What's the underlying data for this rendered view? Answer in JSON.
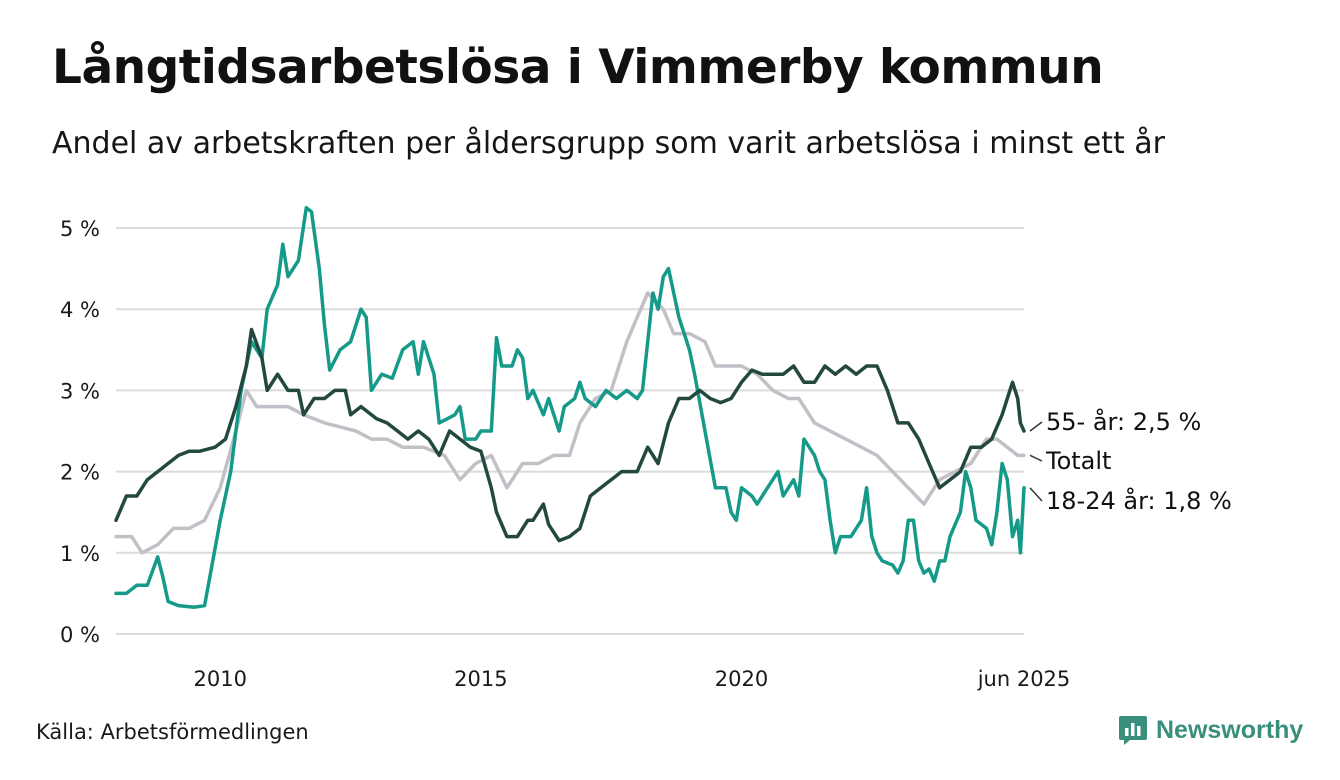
{
  "title": "Långtidsarbetslösa i Vimmerby kommun",
  "subtitle": "Andel av arbetskraften per åldersgrupp som varit arbetslösa i minst ett år",
  "source": "Källa: Arbetsförmedlingen",
  "brand": {
    "name": "Newsworthy",
    "icon": "bar-chart-logo-icon",
    "color": "#3a8f7c"
  },
  "chart_data": {
    "type": "line",
    "ylim": [
      0,
      5.2
    ],
    "xlim": [
      2008.0,
      2025.42
    ],
    "y_ticks": [
      {
        "value": 0,
        "label": "0 %"
      },
      {
        "value": 1,
        "label": "1 %"
      },
      {
        "value": 2,
        "label": "2 %"
      },
      {
        "value": 3,
        "label": "3 %"
      },
      {
        "value": 4,
        "label": "4 %"
      },
      {
        "value": 5,
        "label": "5 %"
      }
    ],
    "x_ticks": [
      {
        "value": 2010,
        "label": "2010"
      },
      {
        "value": 2015,
        "label": "2015"
      },
      {
        "value": 2020,
        "label": "2020"
      },
      {
        "value": 2025.42,
        "label": "jun 2025"
      }
    ],
    "grid": true,
    "series": [
      {
        "name": "Totalt",
        "label": "Totalt",
        "color": "#c2bfc7",
        "points": [
          [
            2008.0,
            1.2
          ],
          [
            2008.3,
            1.2
          ],
          [
            2008.5,
            1.0
          ],
          [
            2008.8,
            1.1
          ],
          [
            2009.1,
            1.3
          ],
          [
            2009.4,
            1.3
          ],
          [
            2009.7,
            1.4
          ],
          [
            2010.0,
            1.8
          ],
          [
            2010.3,
            2.5
          ],
          [
            2010.5,
            3.0
          ],
          [
            2010.7,
            2.8
          ],
          [
            2011.0,
            2.8
          ],
          [
            2011.3,
            2.8
          ],
          [
            2011.6,
            2.7
          ],
          [
            2012.0,
            2.6
          ],
          [
            2012.3,
            2.55
          ],
          [
            2012.6,
            2.5
          ],
          [
            2012.9,
            2.4
          ],
          [
            2013.2,
            2.4
          ],
          [
            2013.5,
            2.3
          ],
          [
            2013.9,
            2.3
          ],
          [
            2014.3,
            2.2
          ],
          [
            2014.6,
            1.9
          ],
          [
            2014.9,
            2.1
          ],
          [
            2015.2,
            2.2
          ],
          [
            2015.5,
            1.8
          ],
          [
            2015.8,
            2.1
          ],
          [
            2016.1,
            2.1
          ],
          [
            2016.4,
            2.2
          ],
          [
            2016.7,
            2.2
          ],
          [
            2016.9,
            2.6
          ],
          [
            2017.2,
            2.9
          ],
          [
            2017.5,
            3.0
          ],
          [
            2017.8,
            3.6
          ],
          [
            2018.0,
            3.9
          ],
          [
            2018.2,
            4.2
          ],
          [
            2018.5,
            4.0
          ],
          [
            2018.7,
            3.7
          ],
          [
            2019.0,
            3.7
          ],
          [
            2019.3,
            3.6
          ],
          [
            2019.5,
            3.3
          ],
          [
            2019.8,
            3.3
          ],
          [
            2020.0,
            3.3
          ],
          [
            2020.3,
            3.2
          ],
          [
            2020.6,
            3.0
          ],
          [
            2020.9,
            2.9
          ],
          [
            2021.1,
            2.9
          ],
          [
            2021.4,
            2.6
          ],
          [
            2021.7,
            2.5
          ],
          [
            2022.0,
            2.4
          ],
          [
            2022.3,
            2.3
          ],
          [
            2022.6,
            2.2
          ],
          [
            2022.9,
            2.0
          ],
          [
            2023.2,
            1.8
          ],
          [
            2023.5,
            1.6
          ],
          [
            2023.8,
            1.9
          ],
          [
            2024.1,
            2.0
          ],
          [
            2024.4,
            2.1
          ],
          [
            2024.7,
            2.4
          ],
          [
            2024.9,
            2.4
          ],
          [
            2025.1,
            2.3
          ],
          [
            2025.3,
            2.2
          ],
          [
            2025.42,
            2.2
          ]
        ]
      },
      {
        "name": "18-24 år",
        "label": "18-24 år: 1,8 %",
        "color": "#159a8a",
        "points": [
          [
            2008.0,
            0.5
          ],
          [
            2008.2,
            0.5
          ],
          [
            2008.4,
            0.6
          ],
          [
            2008.6,
            0.6
          ],
          [
            2008.8,
            0.95
          ],
          [
            2008.9,
            0.7
          ],
          [
            2009.0,
            0.4
          ],
          [
            2009.2,
            0.35
          ],
          [
            2009.5,
            0.33
          ],
          [
            2009.7,
            0.35
          ],
          [
            2009.8,
            0.7
          ],
          [
            2010.0,
            1.4
          ],
          [
            2010.2,
            2.0
          ],
          [
            2010.4,
            3.0
          ],
          [
            2010.6,
            3.6
          ],
          [
            2010.8,
            3.4
          ],
          [
            2010.9,
            4.0
          ],
          [
            2011.1,
            4.3
          ],
          [
            2011.2,
            4.8
          ],
          [
            2011.3,
            4.4
          ],
          [
            2011.5,
            4.6
          ],
          [
            2011.65,
            5.25
          ],
          [
            2011.75,
            5.2
          ],
          [
            2011.9,
            4.5
          ],
          [
            2012.0,
            3.8
          ],
          [
            2012.1,
            3.25
          ],
          [
            2012.3,
            3.5
          ],
          [
            2012.5,
            3.6
          ],
          [
            2012.7,
            4.0
          ],
          [
            2012.8,
            3.9
          ],
          [
            2012.9,
            3.0
          ],
          [
            2013.1,
            3.2
          ],
          [
            2013.3,
            3.15
          ],
          [
            2013.5,
            3.5
          ],
          [
            2013.7,
            3.6
          ],
          [
            2013.8,
            3.2
          ],
          [
            2013.9,
            3.6
          ],
          [
            2014.1,
            3.2
          ],
          [
            2014.2,
            2.6
          ],
          [
            2014.5,
            2.7
          ],
          [
            2014.6,
            2.8
          ],
          [
            2014.7,
            2.4
          ],
          [
            2014.9,
            2.4
          ],
          [
            2015.0,
            2.5
          ],
          [
            2015.2,
            2.5
          ],
          [
            2015.3,
            3.65
          ],
          [
            2015.4,
            3.3
          ],
          [
            2015.6,
            3.3
          ],
          [
            2015.7,
            3.5
          ],
          [
            2015.8,
            3.4
          ],
          [
            2015.9,
            2.9
          ],
          [
            2016.0,
            3.0
          ],
          [
            2016.2,
            2.7
          ],
          [
            2016.3,
            2.9
          ],
          [
            2016.5,
            2.5
          ],
          [
            2016.6,
            2.8
          ],
          [
            2016.8,
            2.9
          ],
          [
            2016.9,
            3.1
          ],
          [
            2017.0,
            2.9
          ],
          [
            2017.2,
            2.8
          ],
          [
            2017.4,
            3.0
          ],
          [
            2017.6,
            2.9
          ],
          [
            2017.8,
            3.0
          ],
          [
            2018.0,
            2.9
          ],
          [
            2018.1,
            3.0
          ],
          [
            2018.3,
            4.2
          ],
          [
            2018.4,
            4.0
          ],
          [
            2018.5,
            4.4
          ],
          [
            2018.6,
            4.5
          ],
          [
            2018.8,
            3.9
          ],
          [
            2018.9,
            3.7
          ],
          [
            2019.0,
            3.5
          ],
          [
            2019.1,
            3.2
          ],
          [
            2019.3,
            2.5
          ],
          [
            2019.5,
            1.8
          ],
          [
            2019.7,
            1.8
          ],
          [
            2019.8,
            1.5
          ],
          [
            2019.9,
            1.4
          ],
          [
            2020.0,
            1.8
          ],
          [
            2020.2,
            1.7
          ],
          [
            2020.3,
            1.6
          ],
          [
            2020.5,
            1.8
          ],
          [
            2020.7,
            2.0
          ],
          [
            2020.8,
            1.7
          ],
          [
            2020.9,
            1.8
          ],
          [
            2021.0,
            1.9
          ],
          [
            2021.1,
            1.7
          ],
          [
            2021.2,
            2.4
          ],
          [
            2021.4,
            2.2
          ],
          [
            2021.5,
            2.0
          ],
          [
            2021.6,
            1.9
          ],
          [
            2021.7,
            1.4
          ],
          [
            2021.8,
            1.0
          ],
          [
            2021.9,
            1.2
          ],
          [
            2022.1,
            1.2
          ],
          [
            2022.3,
            1.4
          ],
          [
            2022.4,
            1.8
          ],
          [
            2022.5,
            1.2
          ],
          [
            2022.6,
            1.0
          ],
          [
            2022.7,
            0.9
          ],
          [
            2022.9,
            0.85
          ],
          [
            2023.0,
            0.75
          ],
          [
            2023.1,
            0.9
          ],
          [
            2023.2,
            1.4
          ],
          [
            2023.3,
            1.4
          ],
          [
            2023.4,
            0.9
          ],
          [
            2023.5,
            0.75
          ],
          [
            2023.6,
            0.8
          ],
          [
            2023.7,
            0.65
          ],
          [
            2023.8,
            0.9
          ],
          [
            2023.9,
            0.9
          ],
          [
            2024.0,
            1.2
          ],
          [
            2024.2,
            1.5
          ],
          [
            2024.3,
            2.0
          ],
          [
            2024.4,
            1.8
          ],
          [
            2024.5,
            1.4
          ],
          [
            2024.7,
            1.3
          ],
          [
            2024.8,
            1.1
          ],
          [
            2024.9,
            1.5
          ],
          [
            2025.0,
            2.1
          ],
          [
            2025.1,
            1.9
          ],
          [
            2025.2,
            1.2
          ],
          [
            2025.3,
            1.4
          ],
          [
            2025.35,
            1.0
          ],
          [
            2025.42,
            1.8
          ]
        ]
      },
      {
        "name": "55- år",
        "label": "55- år: 2,5 %",
        "color": "#23493f",
        "points": [
          [
            2008.0,
            1.4
          ],
          [
            2008.2,
            1.7
          ],
          [
            2008.4,
            1.7
          ],
          [
            2008.6,
            1.9
          ],
          [
            2008.8,
            2.0
          ],
          [
            2009.0,
            2.1
          ],
          [
            2009.2,
            2.2
          ],
          [
            2009.4,
            2.25
          ],
          [
            2009.6,
            2.25
          ],
          [
            2009.9,
            2.3
          ],
          [
            2010.1,
            2.4
          ],
          [
            2010.3,
            2.8
          ],
          [
            2010.5,
            3.3
          ],
          [
            2010.6,
            3.75
          ],
          [
            2010.8,
            3.4
          ],
          [
            2010.9,
            3.0
          ],
          [
            2011.1,
            3.2
          ],
          [
            2011.3,
            3.0
          ],
          [
            2011.5,
            3.0
          ],
          [
            2011.6,
            2.7
          ],
          [
            2011.8,
            2.9
          ],
          [
            2012.0,
            2.9
          ],
          [
            2012.2,
            3.0
          ],
          [
            2012.4,
            3.0
          ],
          [
            2012.5,
            2.7
          ],
          [
            2012.7,
            2.8
          ],
          [
            2013.0,
            2.65
          ],
          [
            2013.2,
            2.6
          ],
          [
            2013.4,
            2.5
          ],
          [
            2013.6,
            2.4
          ],
          [
            2013.8,
            2.5
          ],
          [
            2014.0,
            2.4
          ],
          [
            2014.2,
            2.2
          ],
          [
            2014.4,
            2.5
          ],
          [
            2014.6,
            2.4
          ],
          [
            2014.8,
            2.3
          ],
          [
            2015.0,
            2.25
          ],
          [
            2015.2,
            1.8
          ],
          [
            2015.3,
            1.5
          ],
          [
            2015.5,
            1.2
          ],
          [
            2015.7,
            1.2
          ],
          [
            2015.9,
            1.4
          ],
          [
            2016.0,
            1.4
          ],
          [
            2016.2,
            1.6
          ],
          [
            2016.3,
            1.35
          ],
          [
            2016.5,
            1.15
          ],
          [
            2016.7,
            1.2
          ],
          [
            2016.9,
            1.3
          ],
          [
            2017.1,
            1.7
          ],
          [
            2017.3,
            1.8
          ],
          [
            2017.5,
            1.9
          ],
          [
            2017.7,
            2.0
          ],
          [
            2018.0,
            2.0
          ],
          [
            2018.2,
            2.3
          ],
          [
            2018.4,
            2.1
          ],
          [
            2018.6,
            2.6
          ],
          [
            2018.8,
            2.9
          ],
          [
            2019.0,
            2.9
          ],
          [
            2019.2,
            3.0
          ],
          [
            2019.4,
            2.9
          ],
          [
            2019.6,
            2.85
          ],
          [
            2019.8,
            2.9
          ],
          [
            2020.0,
            3.1
          ],
          [
            2020.2,
            3.25
          ],
          [
            2020.4,
            3.2
          ],
          [
            2020.6,
            3.2
          ],
          [
            2020.8,
            3.2
          ],
          [
            2021.0,
            3.3
          ],
          [
            2021.2,
            3.1
          ],
          [
            2021.4,
            3.1
          ],
          [
            2021.6,
            3.3
          ],
          [
            2021.8,
            3.2
          ],
          [
            2022.0,
            3.3
          ],
          [
            2022.2,
            3.2
          ],
          [
            2022.4,
            3.3
          ],
          [
            2022.6,
            3.3
          ],
          [
            2022.8,
            3.0
          ],
          [
            2023.0,
            2.6
          ],
          [
            2023.2,
            2.6
          ],
          [
            2023.4,
            2.4
          ],
          [
            2023.6,
            2.1
          ],
          [
            2023.8,
            1.8
          ],
          [
            2024.0,
            1.9
          ],
          [
            2024.2,
            2.0
          ],
          [
            2024.4,
            2.3
          ],
          [
            2024.6,
            2.3
          ],
          [
            2024.8,
            2.4
          ],
          [
            2025.0,
            2.7
          ],
          [
            2025.2,
            3.1
          ],
          [
            2025.3,
            2.9
          ],
          [
            2025.35,
            2.6
          ],
          [
            2025.42,
            2.5
          ]
        ]
      }
    ]
  }
}
